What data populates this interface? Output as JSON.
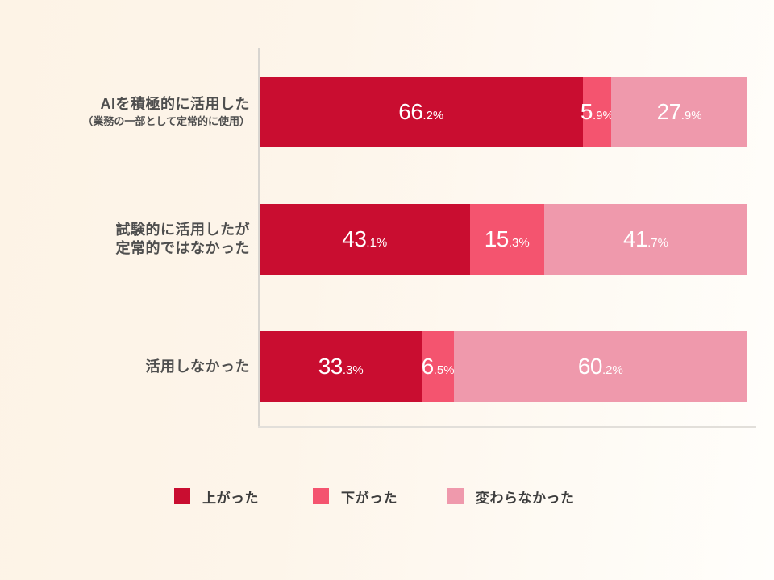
{
  "colors": {
    "up": "#C90D30",
    "down": "#F4546F",
    "unchanged": "#EF99AC",
    "axis_line": "#D8D5D0",
    "category_text": "#4E4E4E",
    "legend_text": "#3D3D3D",
    "value_text": "#FFFFFF",
    "background_left": "#FDF3E6",
    "background_right": "#FFFEFB"
  },
  "chart_data": {
    "type": "bar",
    "orientation": "horizontal",
    "stacked": true,
    "percent_stacked": true,
    "xlim": [
      0,
      100
    ],
    "grid": false,
    "legend_position": "bottom",
    "title": "",
    "xlabel": "",
    "ylabel": "",
    "categories": [
      "AIを積極的に活用した（業務の一部として定常的に使用）",
      "試験的に活用したが定常的ではなかった",
      "活用しなかった"
    ],
    "series": [
      {
        "name": "上がった",
        "color": "#C90D30",
        "values": [
          66.2,
          43.1,
          33.3
        ]
      },
      {
        "name": "下がった",
        "color": "#F4546F",
        "values": [
          5.9,
          15.3,
          6.5
        ]
      },
      {
        "name": "変わらなかった",
        "color": "#EF99AC",
        "values": [
          27.9,
          41.7,
          60.2
        ]
      }
    ],
    "rows": [
      {
        "label_line1": "AIを積極的に活用した",
        "label_line2": "（業務の一部として定常的に使用）",
        "segments": [
          {
            "value": 66.2,
            "int": "66",
            "frac": ".2%"
          },
          {
            "value": 5.9,
            "int": "5",
            "frac": ".9%"
          },
          {
            "value": 27.9,
            "int": "27",
            "frac": ".9%"
          }
        ]
      },
      {
        "label_line1": "試験的に活用したが",
        "label_line2": "定常的ではなかった",
        "segments": [
          {
            "value": 43.1,
            "int": "43",
            "frac": ".1%"
          },
          {
            "value": 15.3,
            "int": "15",
            "frac": ".3%"
          },
          {
            "value": 41.7,
            "int": "41",
            "frac": ".7%"
          }
        ]
      },
      {
        "label_line1": "活用しなかった",
        "segments": [
          {
            "value": 33.3,
            "int": "33",
            "frac": ".3%"
          },
          {
            "value": 6.5,
            "int": "6",
            "frac": ".5%"
          },
          {
            "value": 60.2,
            "int": "60",
            "frac": ".2%"
          }
        ]
      }
    ]
  },
  "legend": {
    "items": [
      {
        "label": "上がった",
        "color": "#C90D30"
      },
      {
        "label": "下がった",
        "color": "#F4546F"
      },
      {
        "label": "変わらなかった",
        "color": "#EF99AC"
      }
    ]
  }
}
